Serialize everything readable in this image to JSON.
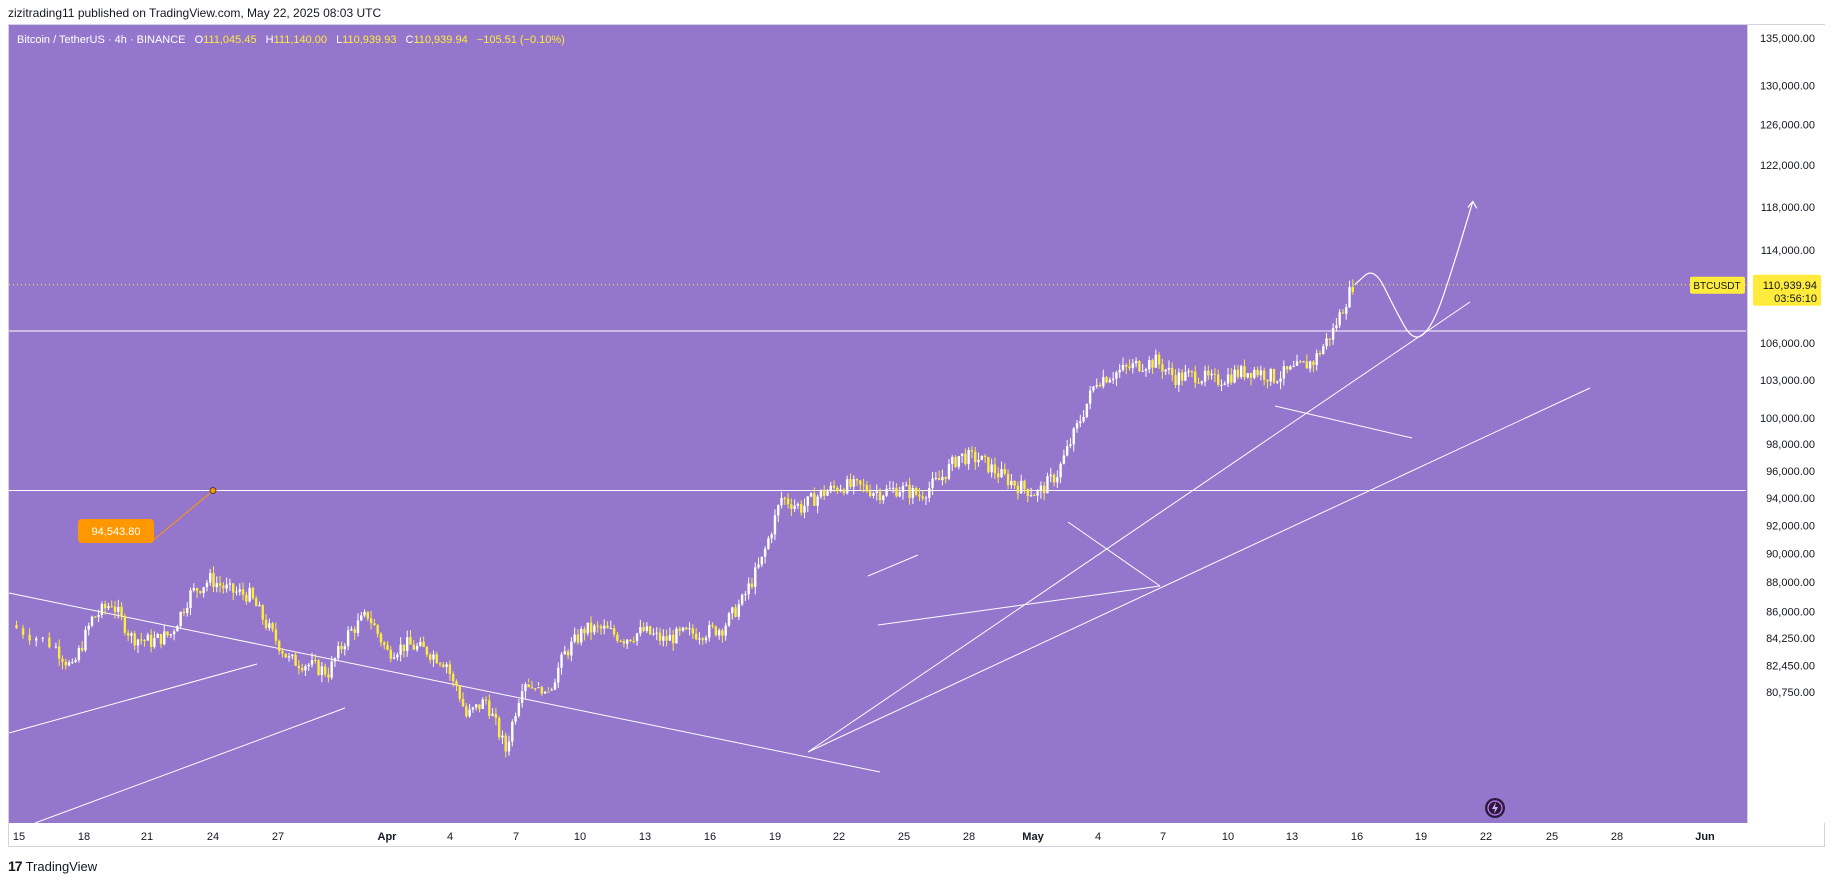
{
  "header": {
    "published": "zizitrading11 published on TradingView.com, May 22, 2025 08:03 UTC"
  },
  "legend": {
    "symbol": "Bitcoin / TetherUS · 4h · BINANCE",
    "open_label": "O",
    "open": "111,045.45",
    "high_label": "H",
    "high": "111,140.00",
    "low_label": "L",
    "low": "110,939.93",
    "close_label": "C",
    "close": "110,939.94",
    "change": "−105.51 (−0.10%)"
  },
  "footer": {
    "brand": "TradingView",
    "logo": "17"
  },
  "colors": {
    "background": "#9476cc",
    "candle_up": "#ffffff",
    "candle_down": "#ffeb3b",
    "line": "#ffffff",
    "marker": "#ff9800",
    "price_tag": "#ffeb3b"
  },
  "chart_data": {
    "type": "candlestick",
    "symbol": "BTCUSDT",
    "interval": "4h",
    "exchange": "BINANCE",
    "x_tick_labels": [
      "15",
      "18",
      "21",
      "24",
      "27",
      "Apr",
      "4",
      "7",
      "10",
      "13",
      "16",
      "19",
      "22",
      "25",
      "28",
      "May",
      "4",
      "7",
      "10",
      "13",
      "16",
      "19",
      "22",
      "25",
      "28",
      "Jun"
    ],
    "y_tick_labels": [
      "135,000.00",
      "130,000.00",
      "126,000.00",
      "122,000.00",
      "118,000.00",
      "114,000.00",
      "110,939.94",
      "106,000.00",
      "103,000.00",
      "100,000.00",
      "98,000.00",
      "96,000.00",
      "94,000.00",
      "92,000.00",
      "90,000.00",
      "88,000.00",
      "86,000.00",
      "84,250.00",
      "82,450.00",
      "80,750.00"
    ],
    "y_scale": "log",
    "ylim": [
      80000,
      137000
    ],
    "current_price": {
      "label": "BTCUSDT",
      "value": "110,939.94",
      "countdown": "03:56:10"
    },
    "annotation": {
      "label": "94,543.80",
      "value": 94543.8
    },
    "horizontal_levels": [
      107000,
      94543.8
    ],
    "price_path": [
      [
        "2025-03-15",
        85100
      ],
      [
        "2025-03-17",
        83900
      ],
      [
        "2025-03-18",
        82200
      ],
      [
        "2025-03-19",
        85500
      ],
      [
        "2025-03-20",
        86600
      ],
      [
        "2025-03-21",
        84300
      ],
      [
        "2025-03-22",
        84000
      ],
      [
        "2025-03-23",
        84500
      ],
      [
        "2025-03-24",
        87200
      ],
      [
        "2025-03-25",
        88200
      ],
      [
        "2025-03-26",
        87400
      ],
      [
        "2025-03-27",
        87100
      ],
      [
        "2025-03-28",
        84800
      ],
      [
        "2025-03-29",
        82800
      ],
      [
        "2025-03-30",
        82500
      ],
      [
        "2025-03-31",
        82000
      ],
      [
        "2025-04-01",
        84500
      ],
      [
        "2025-04-02",
        85800
      ],
      [
        "2025-04-03",
        83300
      ],
      [
        "2025-04-04",
        83800
      ],
      [
        "2025-04-05",
        83400
      ],
      [
        "2025-04-06",
        82600
      ],
      [
        "2025-04-07",
        78600
      ],
      [
        "2025-04-08",
        79600
      ],
      [
        "2025-04-09",
        76500
      ],
      [
        "2025-04-10",
        81500
      ],
      [
        "2025-04-11",
        80300
      ],
      [
        "2025-04-12",
        83200
      ],
      [
        "2025-04-13",
        84800
      ],
      [
        "2025-04-14",
        84800
      ],
      [
        "2025-04-15",
        84200
      ],
      [
        "2025-04-16",
        84700
      ],
      [
        "2025-04-17",
        84100
      ],
      [
        "2025-04-18",
        84500
      ],
      [
        "2025-04-19",
        84600
      ],
      [
        "2025-04-20",
        84900
      ],
      [
        "2025-04-21",
        86700
      ],
      [
        "2025-04-22",
        89500
      ],
      [
        "2025-04-23",
        94000
      ],
      [
        "2025-04-24",
        93300
      ],
      [
        "2025-04-25",
        94300
      ],
      [
        "2025-04-26",
        94900
      ],
      [
        "2025-04-27",
        94800
      ],
      [
        "2025-04-28",
        94400
      ],
      [
        "2025-04-29",
        94700
      ],
      [
        "2025-04-30",
        94200
      ],
      [
        "2025-05-01",
        95300
      ],
      [
        "2025-05-02",
        97100
      ],
      [
        "2025-05-03",
        96900
      ],
      [
        "2025-05-04",
        95800
      ],
      [
        "2025-05-05",
        94900
      ],
      [
        "2025-05-06",
        94300
      ],
      [
        "2025-05-07",
        95800
      ],
      [
        "2025-05-08",
        99300
      ],
      [
        "2025-05-09",
        103000
      ],
      [
        "2025-05-10",
        103600
      ],
      [
        "2025-05-11",
        104200
      ],
      [
        "2025-05-12",
        104500
      ],
      [
        "2025-05-13",
        103200
      ],
      [
        "2025-05-14",
        103400
      ],
      [
        "2025-05-15",
        102900
      ],
      [
        "2025-05-16",
        103500
      ],
      [
        "2025-05-17",
        103800
      ],
      [
        "2025-05-18",
        103200
      ],
      [
        "2025-05-19",
        103800
      ],
      [
        "2025-05-20",
        104500
      ],
      [
        "2025-05-21",
        107000
      ],
      [
        "2025-05-22",
        110939.94
      ]
    ],
    "projection": [
      [
        "2025-05-22",
        110939.94
      ],
      [
        "2025-05-23",
        112500
      ],
      [
        "2025-05-24",
        109000
      ],
      [
        "2025-05-25",
        106000
      ],
      [
        "2025-05-26",
        107500
      ],
      [
        "2025-05-27",
        112500
      ],
      [
        "2025-05-28",
        118500
      ]
    ]
  }
}
